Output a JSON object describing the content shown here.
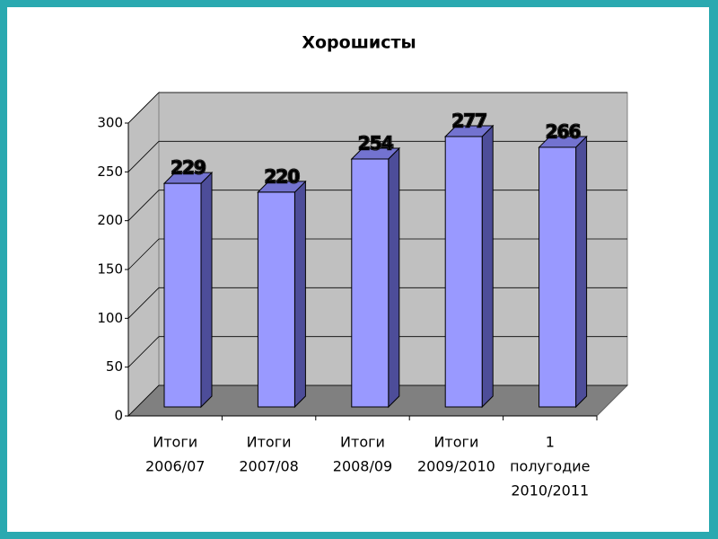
{
  "chart_data": {
    "type": "bar3d",
    "title": "Хорошисты",
    "categories": [
      [
        "Итоги",
        "2006/07"
      ],
      [
        "Итоги",
        "2007/08"
      ],
      [
        "Итоги",
        "2008/09"
      ],
      [
        "Итоги",
        "2009/2010"
      ],
      [
        "1",
        "полугодие",
        "2010/2011"
      ]
    ],
    "values": [
      229,
      220,
      254,
      277,
      266
    ],
    "color": "#9999ff",
    "ylim": [
      0,
      300
    ],
    "yticks": [
      0,
      50,
      100,
      150,
      200,
      250,
      300
    ],
    "grid": true
  }
}
